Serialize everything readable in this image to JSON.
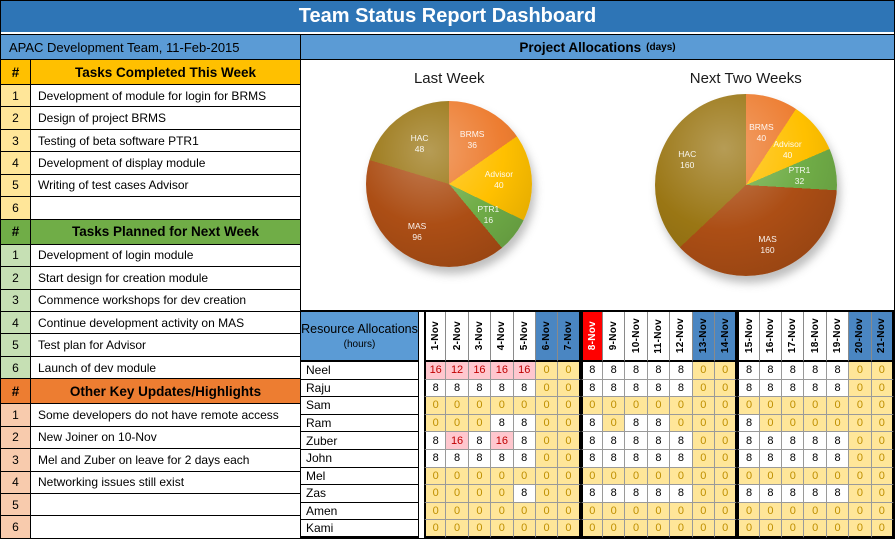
{
  "title": "Team Status Report Dashboard",
  "colors": {
    "title_bar": "#2E75B6",
    "panel_header": "#5B9BD5",
    "weekend_header": "#4A86C2",
    "holiday_header": "#FF0000",
    "zero_cell_bg": "#FFE699",
    "zero_cell_text": "#BF8F00",
    "over_cell_bg": "#FFC7CE",
    "over_cell_text": "#C00000",
    "completed_accent": "#FFC000",
    "planned_accent": "#70AD47",
    "updates_accent": "#ED7D31"
  },
  "left_panel": {
    "header": "APAC Development Team, 11-Feb-2015",
    "row_numbers": [
      "1",
      "2",
      "3",
      "4",
      "5",
      "6"
    ],
    "sections": [
      {
        "hash": "#",
        "header": "Tasks Completed This Week",
        "accent": "#FFC000",
        "num_bg": "#FFE699",
        "rows": [
          "Development of module for login for BRMS",
          "Design of project BRMS",
          "Testing of beta software PTR1",
          "Development of display module",
          "Writing of test cases Advisor",
          ""
        ]
      },
      {
        "hash": "#",
        "header": "Tasks Planned for Next Week",
        "accent": "#70AD47",
        "num_bg": "#C6E0B4",
        "rows": [
          "Development of login module",
          "Start design for creation module",
          "Commence workshops for dev creation",
          "Continue development activity on MAS",
          "Test plan for Advisor",
          "Launch of dev module"
        ]
      },
      {
        "hash": "#",
        "header": "Other Key Updates/Highlights",
        "accent": "#ED7D31",
        "num_bg": "#F8CBAD",
        "rows": [
          "Some developers do not have remote access",
          "New Joiner on 10-Nov",
          "Mel and Zuber on leave for 2 days each",
          "Networking issues still exist",
          "",
          ""
        ]
      }
    ]
  },
  "project_allocations": {
    "header": "Project Allocations",
    "header_unit": "(days)"
  },
  "chart_data": [
    {
      "type": "pie",
      "title": "Last Week",
      "series": [
        {
          "label": "BRMS",
          "value": 36,
          "color": "#ED7D31"
        },
        {
          "label": "Advisor",
          "value": 40,
          "color": "#FFC000"
        },
        {
          "label": "PTR1",
          "value": 16,
          "color": "#70AD47"
        },
        {
          "label": "MAS",
          "value": 96,
          "color": "#AC4E15"
        },
        {
          "label": "HAC",
          "value": 48,
          "color": "#9A7614"
        }
      ]
    },
    {
      "type": "pie",
      "title": "Next Two Weeks",
      "series": [
        {
          "label": "BRMS",
          "value": 40,
          "color": "#ED7D31"
        },
        {
          "label": "Advisor",
          "value": 40,
          "color": "#FFC000"
        },
        {
          "label": "PTR1",
          "value": 32,
          "color": "#70AD47"
        },
        {
          "label": "MAS",
          "value": 160,
          "color": "#AC4E15"
        },
        {
          "label": "HAC",
          "value": 160,
          "color": "#9A7614"
        }
      ]
    }
  ],
  "resource_table": {
    "header": "Resource Allocations",
    "header_unit": "(hours)",
    "dates": [
      "1-Nov",
      "2-Nov",
      "3-Nov",
      "4-Nov",
      "5-Nov",
      "6-Nov",
      "7-Nov",
      "8-Nov",
      "9-Nov",
      "10-Nov",
      "11-Nov",
      "12-Nov",
      "13-Nov",
      "14-Nov",
      "15-Nov",
      "16-Nov",
      "17-Nov",
      "18-Nov",
      "19-Nov",
      "20-Nov",
      "21-Nov"
    ],
    "weekend_indices": [
      5,
      6,
      12,
      13,
      19,
      20
    ],
    "holiday_indices": [
      7
    ],
    "group_start_indices": [
      0,
      7,
      14
    ],
    "group_end_indices": [
      6,
      13,
      20
    ],
    "rows": [
      {
        "name": "Neel",
        "values": [
          16,
          12,
          16,
          16,
          16,
          0,
          0,
          8,
          8,
          8,
          8,
          8,
          0,
          0,
          8,
          8,
          8,
          8,
          8,
          0,
          0
        ]
      },
      {
        "name": "Raju",
        "values": [
          8,
          8,
          8,
          8,
          8,
          0,
          0,
          8,
          8,
          8,
          8,
          8,
          0,
          0,
          8,
          8,
          8,
          8,
          8,
          0,
          0
        ]
      },
      {
        "name": "Sam",
        "values": [
          0,
          0,
          0,
          0,
          0,
          0,
          0,
          0,
          0,
          0,
          0,
          0,
          0,
          0,
          0,
          0,
          0,
          0,
          0,
          0,
          0
        ]
      },
      {
        "name": "Ram",
        "values": [
          0,
          0,
          0,
          8,
          8,
          0,
          0,
          8,
          0,
          8,
          8,
          0,
          0,
          0,
          8,
          0,
          0,
          0,
          0,
          0,
          0
        ]
      },
      {
        "name": "Zuber",
        "values": [
          8,
          16,
          8,
          16,
          8,
          0,
          0,
          8,
          8,
          8,
          8,
          8,
          0,
          0,
          8,
          8,
          8,
          8,
          8,
          0,
          0
        ]
      },
      {
        "name": "John",
        "values": [
          8,
          8,
          8,
          8,
          8,
          0,
          0,
          8,
          8,
          8,
          8,
          8,
          0,
          0,
          8,
          8,
          8,
          8,
          8,
          0,
          0
        ]
      },
      {
        "name": "Mel",
        "values": [
          0,
          0,
          0,
          0,
          0,
          0,
          0,
          0,
          0,
          0,
          0,
          0,
          0,
          0,
          0,
          0,
          0,
          0,
          0,
          0,
          0
        ]
      },
      {
        "name": "Zas",
        "values": [
          0,
          0,
          0,
          0,
          8,
          0,
          0,
          8,
          8,
          8,
          8,
          8,
          0,
          0,
          8,
          8,
          8,
          8,
          8,
          0,
          0
        ]
      },
      {
        "name": "Amen",
        "values": [
          0,
          0,
          0,
          0,
          0,
          0,
          0,
          0,
          0,
          0,
          0,
          0,
          0,
          0,
          0,
          0,
          0,
          0,
          0,
          0,
          0
        ]
      },
      {
        "name": "Kami",
        "values": [
          0,
          0,
          0,
          0,
          0,
          0,
          0,
          0,
          0,
          0,
          0,
          0,
          0,
          0,
          0,
          0,
          0,
          0,
          0,
          0,
          0
        ]
      }
    ]
  }
}
